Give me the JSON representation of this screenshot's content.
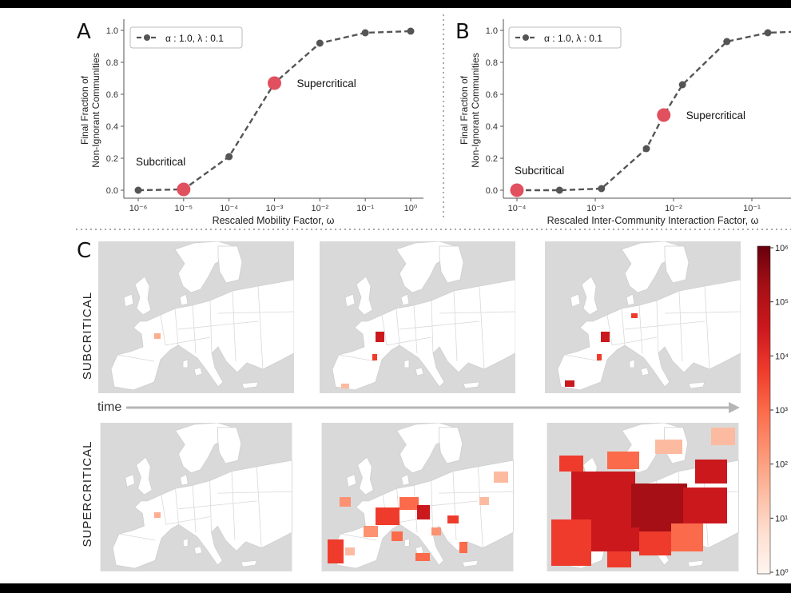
{
  "panels": {
    "a": {
      "letter": "A"
    },
    "b": {
      "letter": "B"
    },
    "c": {
      "letter": "C",
      "row_labels": [
        "SUBCRITICAL",
        "SUPERCRITICAL"
      ],
      "time_label": "time",
      "colorbar": {
        "scale": "log",
        "ticks": [
          "10⁶",
          "10⁵",
          "10⁴",
          "10³",
          "10²",
          "10¹",
          "10⁰"
        ],
        "colors": [
          "#67000d",
          "#a50f15",
          "#cb181d",
          "#ef3b2c",
          "#fb6a4a",
          "#fc9272",
          "#fcbba1",
          "#fee0d2",
          "#fff5f0"
        ]
      }
    }
  },
  "colors": {
    "marker": "#555555",
    "line": "#555555",
    "highlight": "#e0505e",
    "map_sea": "#d9d9d9",
    "map_land": "#ffffff",
    "map_border": "#cccccc",
    "arrow": "#b5b5b5"
  },
  "chart_data": [
    {
      "type": "line",
      "panel": "A",
      "xscale": "log",
      "x": [
        1e-06,
        1e-05,
        0.0001,
        0.001,
        0.01,
        0.1,
        1
      ],
      "y": [
        0.0,
        0.005,
        0.21,
        0.67,
        0.92,
        0.985,
        0.995
      ],
      "series": [
        {
          "name": "α : 1.0, λ : 0.1"
        }
      ],
      "highlights": [
        {
          "x": 1e-05,
          "y": 0.005,
          "label": "Subcritical"
        },
        {
          "x": 0.001,
          "y": 0.67,
          "label": "Supercritical"
        }
      ],
      "xlabel": "Rescaled Mobility Factor, ω",
      "ylabel_lines": [
        "Final Fraction of",
        "Non-Ignorant Communities"
      ],
      "xlim_exp": [
        -6,
        0
      ],
      "ylim": [
        0,
        1.0
      ],
      "xticks": [
        "10⁻⁶",
        "10⁻⁵",
        "10⁻⁴",
        "10⁻³",
        "10⁻²",
        "10⁻¹",
        "10⁰"
      ],
      "yticks": [
        "0.0",
        "0.2",
        "0.4",
        "0.6",
        "0.8",
        "1.0"
      ],
      "legend_position": "top-left",
      "grid": false
    },
    {
      "type": "line",
      "panel": "B",
      "xscale": "log",
      "x": [
        0.0001,
        0.00035,
        0.0012,
        0.0045,
        0.0075,
        0.013,
        0.048,
        0.16,
        0.6
      ],
      "y": [
        0.0,
        0.0,
        0.01,
        0.26,
        0.47,
        0.66,
        0.93,
        0.985,
        0.995
      ],
      "series": [
        {
          "name": "α : 1.0, λ : 0.1"
        }
      ],
      "highlights": [
        {
          "x": 0.0001,
          "y": 0.0,
          "label": "Subcritical"
        },
        {
          "x": 0.0075,
          "y": 0.47,
          "label": "Supercritical"
        }
      ],
      "xlabel": "Rescaled Inter-Community Interaction Factor, ω",
      "ylabel_lines": [
        "Final Fraction of",
        "Non-Ignorant Communities"
      ],
      "xlim_exp": [
        -4,
        0
      ],
      "ylim": [
        0,
        1.0
      ],
      "xticks": [
        "10⁻⁴",
        "10⁻³",
        "10⁻²",
        "10⁻¹"
      ],
      "yticks": [
        "0.0",
        "0.2",
        "0.4",
        "0.6",
        "0.8",
        "1.0"
      ],
      "legend_position": "top-left",
      "grid": false
    }
  ]
}
